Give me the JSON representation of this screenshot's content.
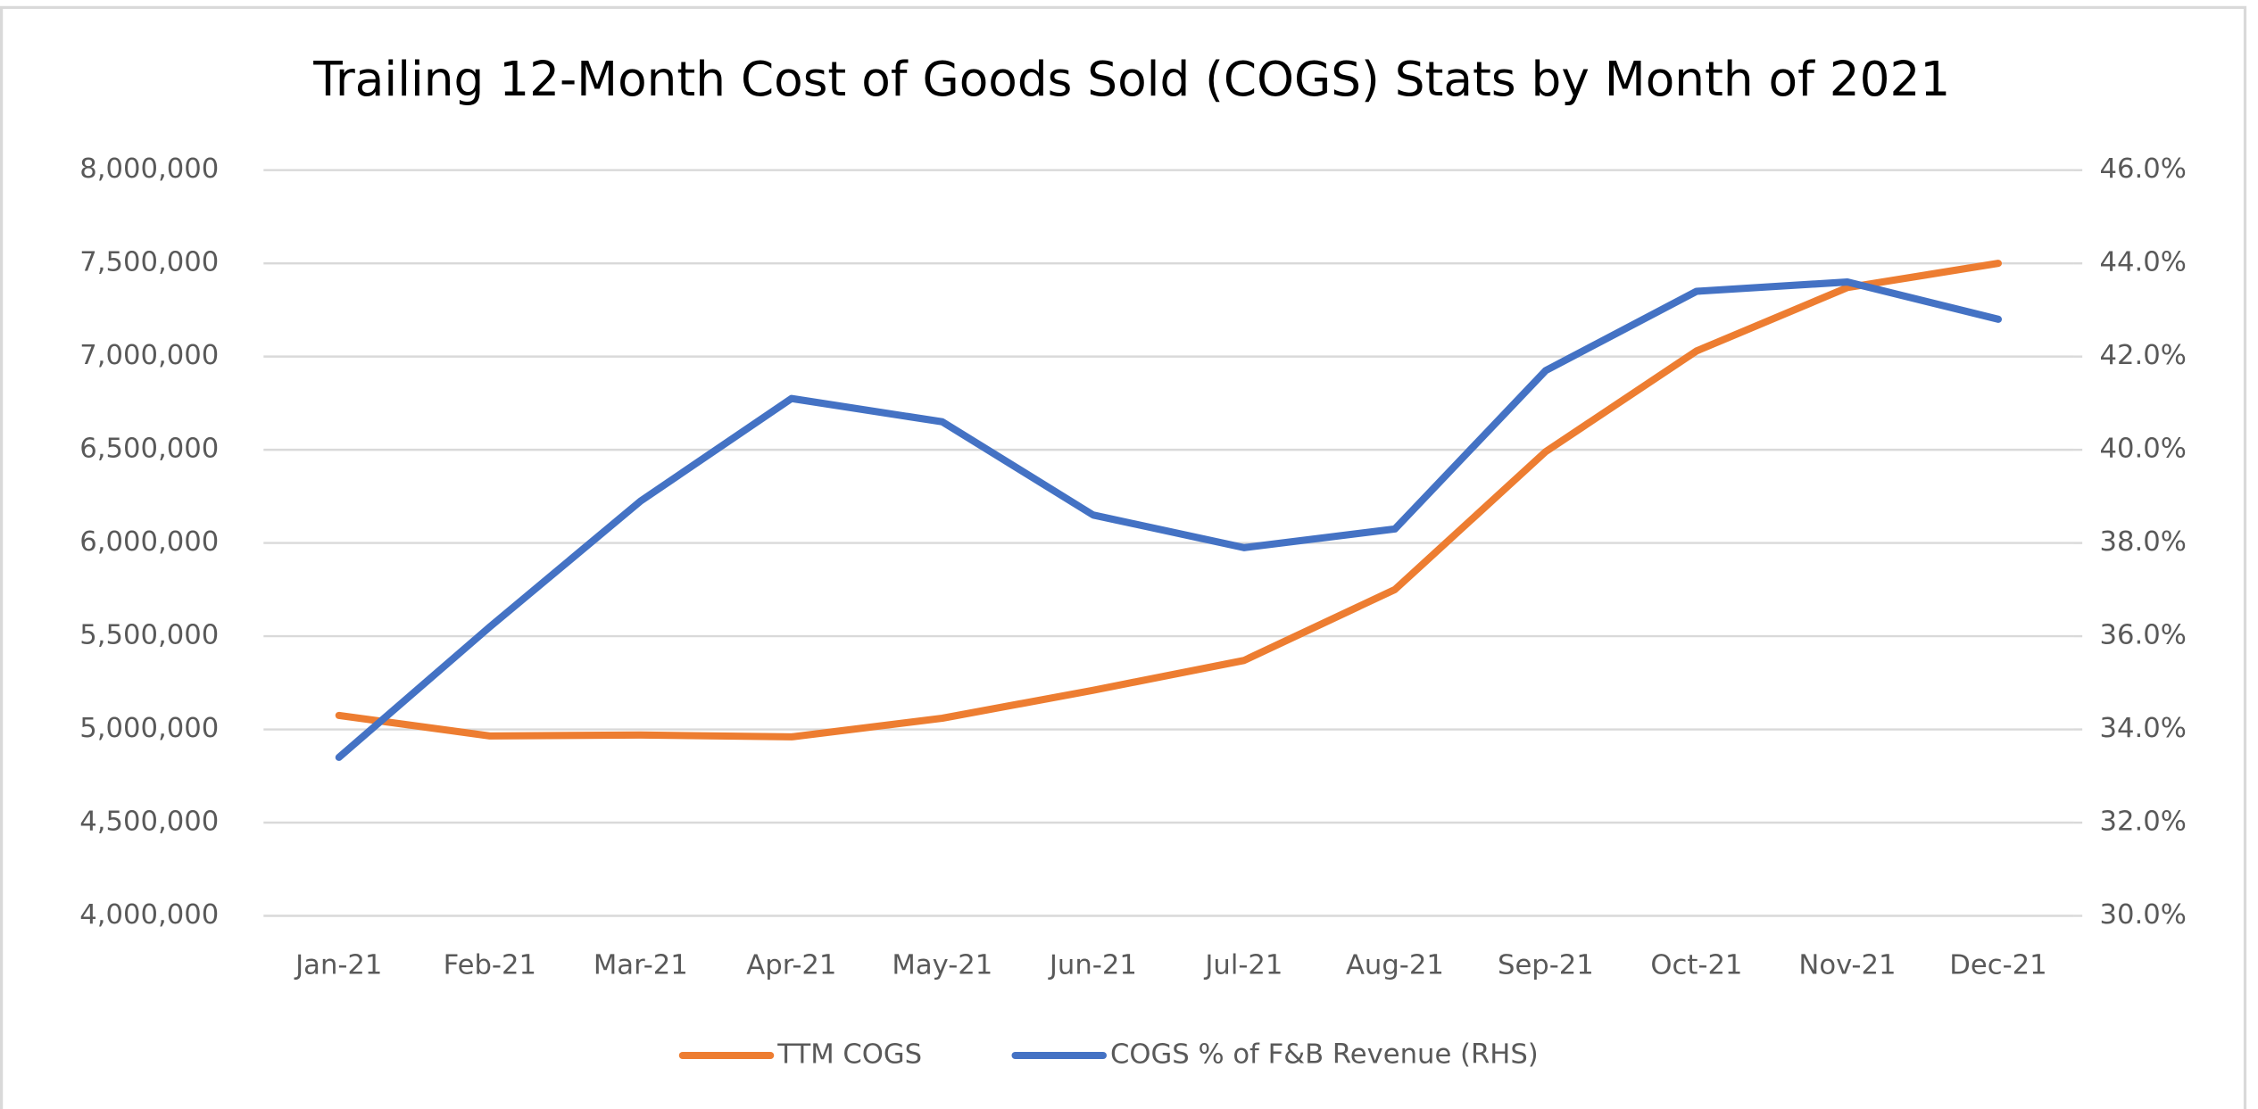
{
  "chart_data": {
    "type": "line",
    "title": "Trailing 12-Month Cost of Goods Sold (COGS) Stats by Month of 2021",
    "categories": [
      "Jan-21",
      "Feb-21",
      "Mar-21",
      "Apr-21",
      "May-21",
      "Jun-21",
      "Jul-21",
      "Aug-21",
      "Sep-21",
      "Oct-21",
      "Nov-21",
      "Dec-21"
    ],
    "series": [
      {
        "name": "TTM COGS",
        "color": "#ed7d31",
        "axis": "y",
        "values": [
          5075000,
          4965000,
          4970000,
          4960000,
          5060000,
          5210000,
          5370000,
          5750000,
          6490000,
          7030000,
          7370000,
          7500000
        ]
      },
      {
        "name": "COGS % of F&B Revenue (RHS)",
        "color": "#4472c4",
        "axis": "y2",
        "values": [
          33.4,
          36.2,
          38.9,
          41.1,
          40.6,
          38.6,
          37.9,
          38.3,
          41.7,
          43.4,
          43.6,
          42.8
        ]
      }
    ],
    "ylim": [
      4000000,
      8000000
    ],
    "yticks": [
      {
        "value": 4000000,
        "label": "4,000,000"
      },
      {
        "value": 4500000,
        "label": "4,500,000"
      },
      {
        "value": 5000000,
        "label": "5,000,000"
      },
      {
        "value": 5500000,
        "label": "5,500,000"
      },
      {
        "value": 6000000,
        "label": "6,000,000"
      },
      {
        "value": 6500000,
        "label": "6,500,000"
      },
      {
        "value": 7000000,
        "label": "7,000,000"
      },
      {
        "value": 7500000,
        "label": "7,500,000"
      },
      {
        "value": 8000000,
        "label": "8,000,000"
      }
    ],
    "y2lim": [
      30,
      46
    ],
    "y2ticks": [
      {
        "value": 30,
        "label": "30.0%"
      },
      {
        "value": 32,
        "label": "32.0%"
      },
      {
        "value": 34,
        "label": "34.0%"
      },
      {
        "value": 36,
        "label": "36.0%"
      },
      {
        "value": 38,
        "label": "38.0%"
      },
      {
        "value": 40,
        "label": "40.0%"
      },
      {
        "value": 42,
        "label": "42.0%"
      },
      {
        "value": 44,
        "label": "44.0%"
      },
      {
        "value": 46,
        "label": "46.0%"
      }
    ],
    "grid": true,
    "legend": "bottom"
  }
}
